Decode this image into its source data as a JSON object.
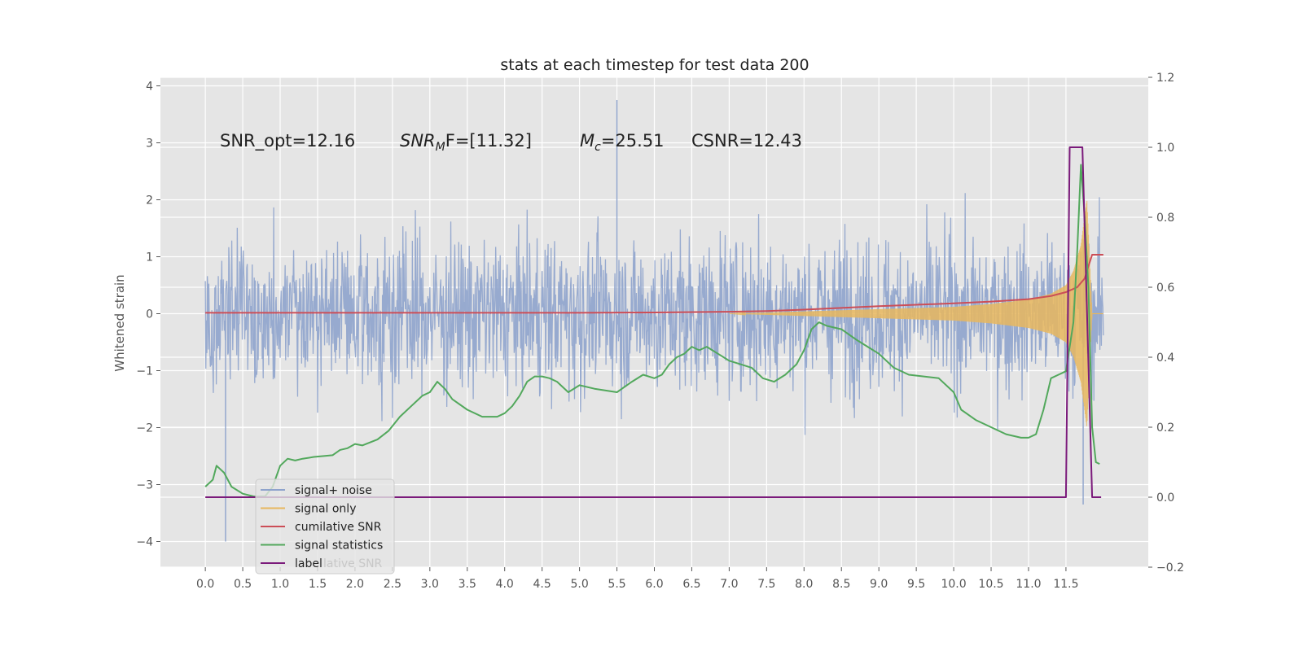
{
  "chart_data": {
    "type": "line",
    "title": "stats at each timestep for test data 200",
    "ylabel": "Whitened strain",
    "xlabel": "",
    "xlim": [
      -0.6,
      12.6
    ],
    "ylim": [
      -4.45,
      4.15
    ],
    "y2lim": [
      -0.2,
      1.2
    ],
    "x_ticks": [
      "0.0",
      "0.5",
      "1.0",
      "1.5",
      "2.0",
      "2.5",
      "3.0",
      "3.5",
      "4.0",
      "4.5",
      "5.0",
      "5.5",
      "6.0",
      "6.5",
      "7.0",
      "7.5",
      "8.0",
      "8.5",
      "9.0",
      "9.5",
      "10.0",
      "10.5",
      "11.0",
      "11.5"
    ],
    "y_ticks": [
      "4",
      "3",
      "2",
      "1",
      "0",
      "−1",
      "−2",
      "−3",
      "−4"
    ],
    "y2_ticks": [
      "1.2",
      "1.0",
      "0.8",
      "0.6",
      "0.4",
      "0.2",
      "0.0",
      "−0.2"
    ],
    "grid": true,
    "legend_position": "lower-left",
    "annotations": {
      "snr_opt": "SNR_opt=12.16",
      "snr_mf_main": "SNR",
      "snr_mf_sub": "M",
      "snr_mf_rest": "F=[11.32]",
      "mc_main": "M",
      "mc_sub": "c",
      "mc_rest": "=25.51",
      "csnr": "CSNR=12.43"
    },
    "legend_overlap_text": "lative SNR",
    "colors": {
      "signal_noise": "#8ea3cc",
      "signal_only": "#e8b75e",
      "cumulative_snr": "#cc4e57",
      "signal_statistics": "#52a85c",
      "label": "#7b1a7b",
      "plot_bg": "#e5e5e5",
      "grid": "#ffffff"
    },
    "series": [
      {
        "name": "signal+ noise",
        "axis": "left",
        "color": "#8ea3cc",
        "x_range": [
          0.0,
          12.0
        ],
        "envelope": {
          "upper": 2.4,
          "lower": -2.2,
          "max_spike": 3.75,
          "min_spike": -4.0
        }
      },
      {
        "name": "signal only",
        "axis": "left",
        "color": "#e8b75e",
        "x": [
          7.0,
          8.0,
          9.0,
          10.0,
          10.5,
          11.0,
          11.3,
          11.5,
          11.6,
          11.7,
          11.78,
          11.85
        ],
        "amplitude": [
          0.0,
          0.04,
          0.08,
          0.12,
          0.17,
          0.25,
          0.35,
          0.5,
          0.75,
          1.2,
          2.0,
          0.0
        ]
      },
      {
        "name": "cumilative SNR",
        "axis": "right",
        "color": "#cc4e57",
        "x": [
          0.0,
          3.0,
          5.0,
          6.0,
          7.0,
          7.5,
          8.0,
          8.5,
          9.0,
          9.5,
          10.0,
          10.5,
          11.0,
          11.3,
          11.5,
          11.65,
          11.75,
          11.8,
          11.85,
          12.0
        ],
        "values": [
          0.527,
          0.527,
          0.527,
          0.528,
          0.53,
          0.532,
          0.536,
          0.541,
          0.546,
          0.55,
          0.554,
          0.559,
          0.566,
          0.575,
          0.586,
          0.6,
          0.625,
          0.66,
          0.693,
          0.693
        ]
      },
      {
        "name": "signal statistics",
        "axis": "right",
        "color": "#52a85c",
        "x": [
          0.0,
          0.1,
          0.15,
          0.25,
          0.35,
          0.5,
          0.65,
          0.8,
          0.9,
          1.0,
          1.1,
          1.2,
          1.3,
          1.45,
          1.6,
          1.7,
          1.8,
          1.9,
          2.0,
          2.1,
          2.3,
          2.45,
          2.6,
          2.75,
          2.9,
          3.0,
          3.1,
          3.2,
          3.3,
          3.5,
          3.7,
          3.9,
          4.0,
          4.1,
          4.2,
          4.3,
          4.4,
          4.5,
          4.6,
          4.7,
          4.85,
          5.0,
          5.2,
          5.5,
          5.7,
          5.85,
          6.0,
          6.1,
          6.2,
          6.3,
          6.4,
          6.5,
          6.6,
          6.7,
          6.85,
          7.0,
          7.15,
          7.3,
          7.45,
          7.6,
          7.75,
          7.9,
          8.0,
          8.1,
          8.2,
          8.3,
          8.5,
          8.7,
          8.85,
          9.0,
          9.2,
          9.4,
          9.6,
          9.8,
          10.0,
          10.1,
          10.3,
          10.5,
          10.7,
          10.9,
          11.0,
          11.1,
          11.2,
          11.3,
          11.4,
          11.5,
          11.6,
          11.65,
          11.7,
          11.75,
          11.8,
          11.85,
          11.9,
          11.95
        ],
        "values": [
          0.03,
          0.05,
          0.09,
          0.07,
          0.03,
          0.01,
          0.002,
          0.003,
          0.03,
          0.09,
          0.11,
          0.105,
          0.11,
          0.115,
          0.118,
          0.12,
          0.135,
          0.14,
          0.152,
          0.148,
          0.165,
          0.19,
          0.23,
          0.26,
          0.29,
          0.3,
          0.33,
          0.31,
          0.28,
          0.25,
          0.23,
          0.23,
          0.24,
          0.26,
          0.29,
          0.33,
          0.345,
          0.345,
          0.34,
          0.33,
          0.3,
          0.32,
          0.31,
          0.3,
          0.33,
          0.35,
          0.34,
          0.35,
          0.38,
          0.4,
          0.41,
          0.43,
          0.42,
          0.43,
          0.41,
          0.39,
          0.38,
          0.37,
          0.34,
          0.33,
          0.35,
          0.38,
          0.42,
          0.48,
          0.5,
          0.49,
          0.48,
          0.45,
          0.43,
          0.41,
          0.37,
          0.35,
          0.345,
          0.34,
          0.3,
          0.25,
          0.22,
          0.2,
          0.18,
          0.17,
          0.17,
          0.18,
          0.25,
          0.34,
          0.35,
          0.36,
          0.5,
          0.7,
          0.95,
          0.8,
          0.6,
          0.2,
          0.1,
          0.095
        ]
      },
      {
        "name": "label",
        "axis": "right",
        "color": "#7b1a7b",
        "x": [
          0.0,
          11.5,
          11.55,
          11.7,
          11.72,
          11.85,
          11.87,
          11.97
        ],
        "values": [
          0.0,
          0.0,
          1.0,
          1.0,
          1.0,
          0.0,
          0.0,
          0.0
        ]
      }
    ]
  }
}
